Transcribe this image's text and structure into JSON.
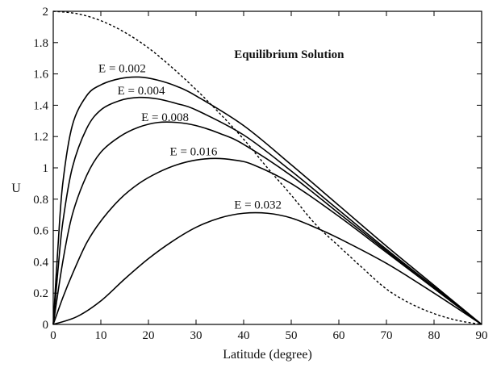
{
  "chart_data": {
    "type": "line",
    "xlabel": "Latitude (degree)",
    "ylabel": "U",
    "xlim": [
      0,
      90
    ],
    "ylim": [
      0,
      2
    ],
    "xticks": [
      "0",
      "10",
      "20",
      "30",
      "40",
      "50",
      "60",
      "70",
      "80",
      "90"
    ],
    "yticks": [
      "0",
      "0.2",
      "0.4",
      "0.6",
      "0.8",
      "1",
      "1.2",
      "1.4",
      "1.6",
      "1.8",
      "2"
    ],
    "grid": false,
    "legend": "none",
    "series": [
      {
        "name": "Equilibrium Solution",
        "style": "dashed",
        "x": [
          0,
          5,
          10,
          15,
          20,
          25,
          30,
          35,
          40,
          45,
          50,
          55,
          60,
          65,
          70,
          75,
          80,
          85,
          90
        ],
        "y": [
          2.0,
          1.985,
          1.94,
          1.866,
          1.766,
          1.64,
          1.5,
          1.347,
          1.183,
          1.0,
          0.826,
          0.643,
          0.5,
          0.36,
          0.226,
          0.134,
          0.069,
          0.025,
          0.0
        ]
      },
      {
        "name": "E = 0.002",
        "style": "solid",
        "x": [
          0,
          1,
          2,
          4,
          7,
          10,
          14,
          18,
          22,
          26,
          30,
          40,
          50,
          60,
          70,
          80,
          90
        ],
        "y": [
          0,
          0.5,
          0.9,
          1.27,
          1.46,
          1.53,
          1.57,
          1.58,
          1.56,
          1.52,
          1.46,
          1.27,
          1.02,
          0.76,
          0.5,
          0.25,
          0.0
        ]
      },
      {
        "name": "E = 0.004",
        "style": "solid",
        "x": [
          0,
          1,
          2,
          4,
          7,
          10,
          14,
          18,
          22,
          26,
          30,
          40,
          50,
          60,
          70,
          80,
          90
        ],
        "y": [
          0,
          0.35,
          0.65,
          1.0,
          1.25,
          1.37,
          1.43,
          1.45,
          1.44,
          1.41,
          1.37,
          1.21,
          0.98,
          0.73,
          0.48,
          0.24,
          0.0
        ]
      },
      {
        "name": "E = 0.008",
        "style": "solid",
        "x": [
          0,
          2,
          4,
          7,
          10,
          14,
          18,
          22,
          26,
          30,
          35,
          40,
          50,
          60,
          70,
          80,
          90
        ],
        "y": [
          0,
          0.4,
          0.7,
          0.95,
          1.1,
          1.2,
          1.26,
          1.29,
          1.29,
          1.27,
          1.22,
          1.15,
          0.95,
          0.71,
          0.47,
          0.23,
          0.0
        ]
      },
      {
        "name": "E = 0.016",
        "style": "solid",
        "x": [
          0,
          2,
          4,
          7,
          10,
          14,
          18,
          22,
          26,
          30,
          34,
          38,
          42,
          50,
          60,
          70,
          80,
          90
        ],
        "y": [
          0,
          0.17,
          0.32,
          0.52,
          0.66,
          0.8,
          0.9,
          0.97,
          1.02,
          1.05,
          1.06,
          1.05,
          1.02,
          0.9,
          0.69,
          0.46,
          0.23,
          0.0
        ]
      },
      {
        "name": "E = 0.032",
        "style": "solid",
        "x": [
          0,
          5,
          10,
          15,
          20,
          25,
          30,
          35,
          40,
          45,
          50,
          55,
          60,
          70,
          80,
          90
        ],
        "y": [
          0,
          0.05,
          0.15,
          0.29,
          0.42,
          0.53,
          0.62,
          0.68,
          0.71,
          0.71,
          0.68,
          0.62,
          0.55,
          0.39,
          0.2,
          0.0
        ]
      }
    ],
    "annotations": [
      {
        "text": "E = 0.002",
        "x": 9.5,
        "y": 1.61
      },
      {
        "text": "E = 0.004",
        "x": 13.5,
        "y": 1.47
      },
      {
        "text": "E = 0.008",
        "x": 18.5,
        "y": 1.3
      },
      {
        "text": "E = 0.016",
        "x": 24.5,
        "y": 1.08
      },
      {
        "text": "E = 0.032",
        "x": 38,
        "y": 0.74
      },
      {
        "text": "Equilibrium Solution",
        "x": 38,
        "y": 1.7,
        "bold": true
      }
    ]
  }
}
